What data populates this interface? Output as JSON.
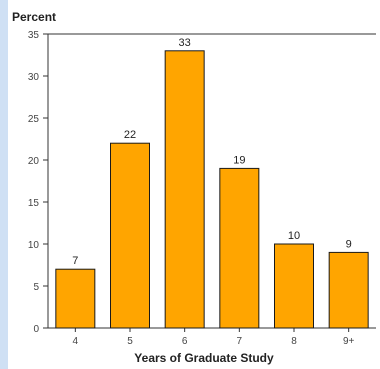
{
  "chart_data": {
    "type": "bar",
    "ylabel": "Percent",
    "xlabel": "Years of Graduate Study",
    "categories": [
      "4",
      "5",
      "6",
      "7",
      "8",
      "9+"
    ],
    "values": [
      7,
      22,
      33,
      19,
      10,
      9
    ],
    "data_labels": [
      "7",
      "22",
      "33",
      "19",
      "10",
      "9"
    ],
    "yticks": [
      0,
      5,
      10,
      15,
      20,
      25,
      30,
      35
    ],
    "ylim": [
      0,
      35
    ],
    "grid": false,
    "legend": "none",
    "colors": {
      "bar": "#FFA500",
      "bar_border": "#1a1a1a",
      "axis": "#333333",
      "text": "#222222"
    }
  }
}
